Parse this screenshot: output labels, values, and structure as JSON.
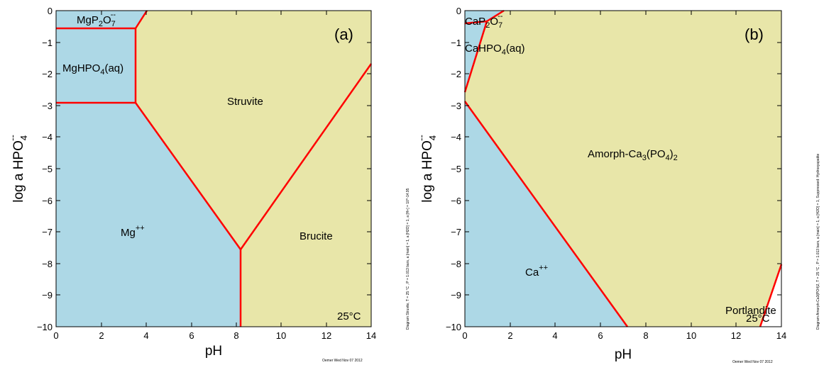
{
  "colors": {
    "aqueous": "#add8e6",
    "mineral": "#e8e6a9",
    "boundary": "#ff0000"
  },
  "panel_a": {
    "tag": "(a)",
    "temperature": "25°C",
    "credit": "Oemer Wed Nov 07 2012",
    "caption": "Diagram Struvite, T = 25 °C , P = 1.013 bars, a [main] = 1, a [H2O] = 1, a [H+] = 10^-14.95",
    "x_title": "pH",
    "y_title_main": "log a HPO",
    "y_title_sub": "4",
    "y_title_sup": "--",
    "x_ticks": [
      "0",
      "2",
      "4",
      "6",
      "8",
      "10",
      "12",
      "14"
    ],
    "y_ticks": [
      "0",
      "−1",
      "−2",
      "−3",
      "−4",
      "−5",
      "−6",
      "−7",
      "−8",
      "−9",
      "−10"
    ],
    "fields": {
      "mgp2o7": {
        "main": "MgP",
        "sub": "2",
        "mid": "O",
        "sub2": "7",
        "sup": "--"
      },
      "mghpo4": {
        "main": "MgHPO",
        "sub": "4",
        "tail": "(aq)"
      },
      "struvite": "Struvite",
      "mg": {
        "main": "Mg",
        "sup": "++"
      },
      "brucite": "Brucite"
    }
  },
  "panel_b": {
    "tag": "(b)",
    "temperature": "25°C",
    "credit": "Oemer Wed Nov 07 2012",
    "caption": "Diagram Amorph-Ca3(PO4)2, T = 25 °C , P = 1.013 bars, a [main] = 1, a [H2O] = 1, Suppressed: Hydroxyapatite",
    "x_title": "pH",
    "y_title_main": "log a HPO",
    "y_title_sub": "4",
    "y_title_sup": "--",
    "x_ticks": [
      "0",
      "2",
      "4",
      "6",
      "8",
      "10",
      "12",
      "14"
    ],
    "y_ticks": [
      "0",
      "−1",
      "−2",
      "−3",
      "−4",
      "−5",
      "−6",
      "−7",
      "−8",
      "−9",
      "−10"
    ],
    "fields": {
      "cap2o7": {
        "main": "CaP",
        "sub": "2",
        "mid": "O",
        "sub2": "7",
        "sup": "--"
      },
      "cahpo4": {
        "main": "CaHPO",
        "sub": "4",
        "tail": "(aq)"
      },
      "amorph": {
        "main": "Amorph-Ca",
        "sub": "3",
        "mid": "(PO",
        "sub2": "4",
        "tail": ")",
        "sub3": "2"
      },
      "ca": {
        "main": "Ca",
        "sup": "++"
      },
      "portlandite": "Portlandite"
    }
  }
}
